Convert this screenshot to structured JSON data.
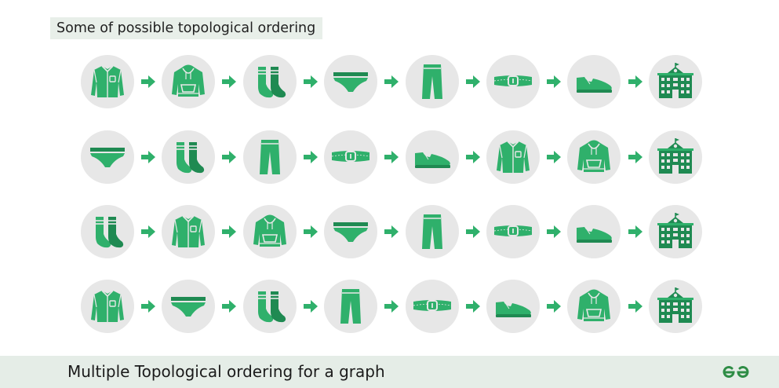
{
  "header": {
    "label": "Some of possible topological ordering"
  },
  "orderings": [
    {
      "items": [
        "shirt",
        "jacket",
        "socks",
        "undershorts",
        "pants",
        "belt",
        "shoes",
        "school"
      ]
    },
    {
      "items": [
        "undershorts",
        "socks",
        "pants",
        "belt",
        "shoes",
        "shirt",
        "jacket",
        "school"
      ]
    },
    {
      "items": [
        "socks",
        "shirt",
        "jacket",
        "undershorts",
        "pants",
        "belt",
        "shoes",
        "school"
      ]
    },
    {
      "items": [
        "shirt",
        "undershorts",
        "socks",
        "pants",
        "belt",
        "shoes",
        "jacket",
        "school"
      ]
    }
  ],
  "footer": {
    "title": "Multiple Topological ordering for a graph"
  },
  "colors": {
    "accent": "#2fb06b",
    "dark_accent": "#1f8a52",
    "node_bg": "#e7e7e7",
    "arrow": "#2fb06b"
  }
}
